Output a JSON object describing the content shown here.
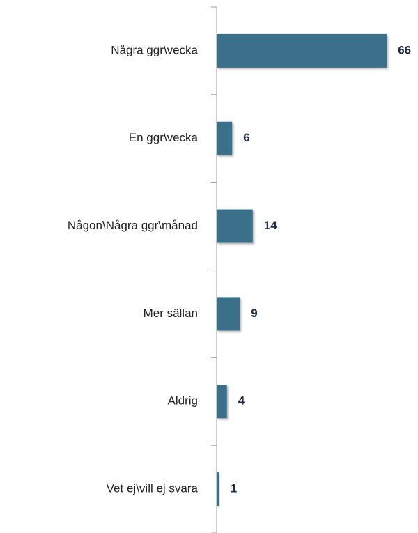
{
  "chart_data": {
    "type": "bar",
    "orientation": "horizontal",
    "categories": [
      "Några ggr\\vecka",
      "En ggr\\vecka",
      "Någon\\Några ggr\\månad",
      "Mer sällan",
      "Aldrig",
      "Vet ej\\vill ej svara"
    ],
    "values": [
      66,
      6,
      14,
      9,
      4,
      1
    ],
    "color": "#3a6f8b",
    "xlim": [
      0,
      70
    ]
  }
}
